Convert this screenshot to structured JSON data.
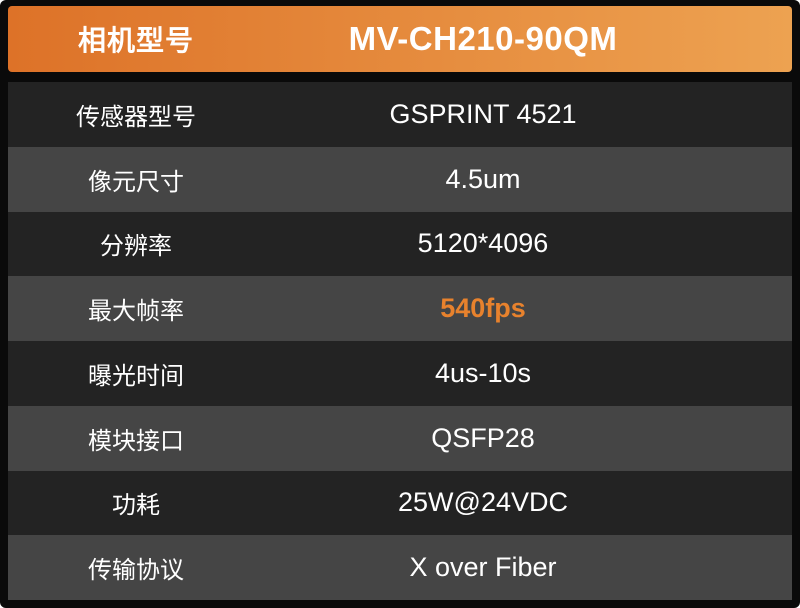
{
  "header": {
    "label": "相机型号",
    "model": "MV-CH210-90QM"
  },
  "rows": [
    {
      "label": "传感器型号",
      "value": "GSPRINT 4521",
      "highlight": false
    },
    {
      "label": "像元尺寸",
      "value": "4.5um",
      "highlight": false
    },
    {
      "label": "分辨率",
      "value": "5120*4096",
      "highlight": false
    },
    {
      "label": "最大帧率",
      "value": "540fps",
      "highlight": true
    },
    {
      "label": "曝光时间",
      "value": "4us-10s",
      "highlight": false
    },
    {
      "label": "模块接口",
      "value": "QSFP28",
      "highlight": false
    },
    {
      "label": "功耗",
      "value": "25W@24VDC",
      "highlight": false
    },
    {
      "label": "传输协议",
      "value": "X over Fiber",
      "highlight": false
    }
  ],
  "colors": {
    "page_bg": "#0a0a0a",
    "row_dark": "#232323",
    "row_light": "#454545",
    "header_gradient_start": "#dd7228",
    "header_gradient_end": "#eda251",
    "highlight": "#e8822d",
    "text": "#ffffff"
  }
}
